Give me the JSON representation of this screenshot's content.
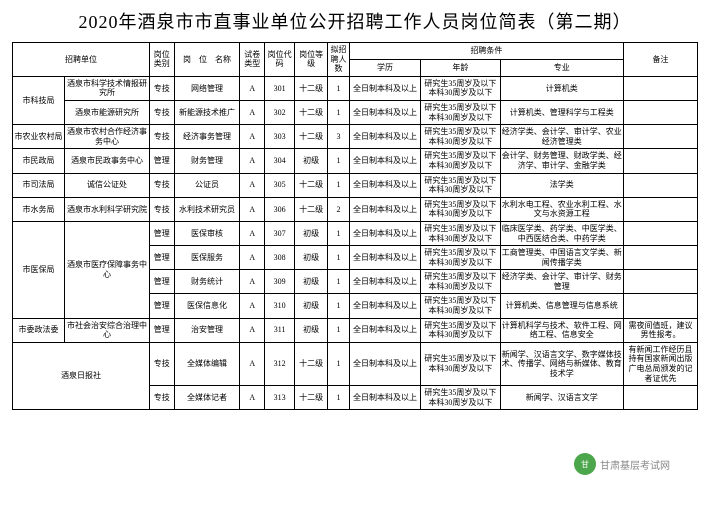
{
  "title": "2020年酒泉市市直事业单位公开招聘工作人员岗位简表（第二期）",
  "headers": {
    "org": "招聘单位",
    "cat": "岗位类别",
    "post": "岗　位　名称",
    "exam": "试卷类型",
    "code": "岗位代码",
    "level": "岗位等级",
    "num": "拟招聘人数",
    "cond": "招聘条件",
    "edu": "学历",
    "age": "年龄",
    "major": "专业",
    "note": "备注"
  },
  "groups": [
    {
      "org": "市科技局",
      "units": [
        {
          "unit": "酒泉市科学技术情报研究所",
          "rows": [
            {
              "cat": "专技",
              "post": "网络管理",
              "exam": "A",
              "code": "301",
              "level": "十二级",
              "num": "1",
              "edu": "全日制本科及以上",
              "age": "研究生35周岁及以下 本科30周岁及以下",
              "major": "计算机类",
              "note": ""
            }
          ]
        },
        {
          "unit": "酒泉市能源研究所",
          "rows": [
            {
              "cat": "专技",
              "post": "新能源技术推广",
              "exam": "A",
              "code": "302",
              "level": "十二级",
              "num": "1",
              "edu": "全日制本科及以上",
              "age": "研究生35周岁及以下 本科30周岁及以下",
              "major": "计算机类、管理科学与工程类",
              "note": ""
            }
          ]
        }
      ]
    },
    {
      "org": "市农业农村局",
      "units": [
        {
          "unit": "酒泉市农村合作经济事务中心",
          "rows": [
            {
              "cat": "专技",
              "post": "经济事务管理",
              "exam": "A",
              "code": "303",
              "level": "十二级",
              "num": "3",
              "edu": "全日制本科及以上",
              "age": "研究生35周岁及以下 本科30周岁及以下",
              "major": "经济学类、会计学、审计学、农业经济管理类",
              "note": ""
            }
          ]
        }
      ]
    },
    {
      "org": "市民政局",
      "units": [
        {
          "unit": "酒泉市民政事务中心",
          "rows": [
            {
              "cat": "管理",
              "post": "财务管理",
              "exam": "A",
              "code": "304",
              "level": "初级",
              "num": "1",
              "edu": "全日制本科及以上",
              "age": "研究生35周岁及以下 本科30周岁及以下",
              "major": "会计学、财务管理、财政学类、经济学、审计学、金融学类",
              "note": ""
            }
          ]
        }
      ]
    },
    {
      "org": "市司法局",
      "units": [
        {
          "unit": "诚信公证处",
          "rows": [
            {
              "cat": "专技",
              "post": "公证员",
              "exam": "A",
              "code": "305",
              "level": "十二级",
              "num": "1",
              "edu": "全日制本科及以上",
              "age": "研究生35周岁及以下 本科30周岁及以下",
              "major": "法学类",
              "note": ""
            }
          ]
        }
      ]
    },
    {
      "org": "市水务局",
      "units": [
        {
          "unit": "酒泉市水利科学研究院",
          "rows": [
            {
              "cat": "专技",
              "post": "水利技术研究员",
              "exam": "A",
              "code": "306",
              "level": "十二级",
              "num": "2",
              "edu": "全日制本科及以上",
              "age": "研究生35周岁及以下 本科30周岁及以下",
              "major": "水利水电工程、农业水利工程、水文与水资源工程",
              "note": ""
            }
          ]
        }
      ]
    },
    {
      "org": "市医保局",
      "units": [
        {
          "unit": "酒泉市医疗保障事务中心",
          "rows": [
            {
              "cat": "管理",
              "post": "医保审核",
              "exam": "A",
              "code": "307",
              "level": "初级",
              "num": "1",
              "edu": "全日制本科及以上",
              "age": "研究生35周岁及以下 本科30周岁及以下",
              "major": "临床医学类、药学类、中医学类、中西医结合类、中药学类",
              "note": ""
            },
            {
              "cat": "管理",
              "post": "医保服务",
              "exam": "A",
              "code": "308",
              "level": "初级",
              "num": "1",
              "edu": "全日制本科及以上",
              "age": "研究生35周岁及以下 本科30周岁及以下",
              "major": "工商管理类、中国语言文学类、新闻传播学类",
              "note": ""
            },
            {
              "cat": "管理",
              "post": "财务统计",
              "exam": "A",
              "code": "309",
              "level": "初级",
              "num": "1",
              "edu": "全日制本科及以上",
              "age": "研究生35周岁及以下 本科30周岁及以下",
              "major": "经济学类、会计学、审计学、财务管理",
              "note": ""
            },
            {
              "cat": "管理",
              "post": "医保信息化",
              "exam": "A",
              "code": "310",
              "level": "初级",
              "num": "1",
              "edu": "全日制本科及以上",
              "age": "研究生35周岁及以下 本科30周岁及以下",
              "major": "计算机类、信息管理与信息系统",
              "note": ""
            }
          ]
        }
      ]
    },
    {
      "org": "市委政法委",
      "units": [
        {
          "unit": "市社会治安综合治理中心",
          "rows": [
            {
              "cat": "管理",
              "post": "治安管理",
              "exam": "A",
              "code": "311",
              "level": "初级",
              "num": "1",
              "edu": "全日制本科及以上",
              "age": "研究生35周岁及以下 本科30周岁及以下",
              "major": "计算机科学与技术、软件工程、网络工程、信息安全",
              "note": "需夜间值班，建议男性报考。"
            }
          ]
        }
      ]
    },
    {
      "org": "酒泉日报社",
      "org_colspan": 2,
      "units": [
        {
          "unit": "",
          "rows": [
            {
              "cat": "专技",
              "post": "全媒体编辑",
              "exam": "A",
              "code": "312",
              "level": "十二级",
              "num": "1",
              "edu": "全日制本科及以上",
              "age": "研究生35周岁及以下 本科30周岁及以下",
              "major": "新闻学、汉语言文学、数字媒体技术、传播学、网络与新媒体、教育技术学",
              "note": "有新闻工作经历且持有国家新闻出版广电总局颁发的记者证优先"
            },
            {
              "cat": "专技",
              "post": "全媒体记者",
              "exam": "A",
              "code": "313",
              "level": "十二级",
              "num": "1",
              "edu": "全日制本科及以上",
              "age": "研究生35周岁及以下 本科30周岁及以下",
              "major": "新闻学、汉语言文学",
              "note": ""
            }
          ]
        }
      ]
    }
  ],
  "watermark": "甘肃基层考试网"
}
